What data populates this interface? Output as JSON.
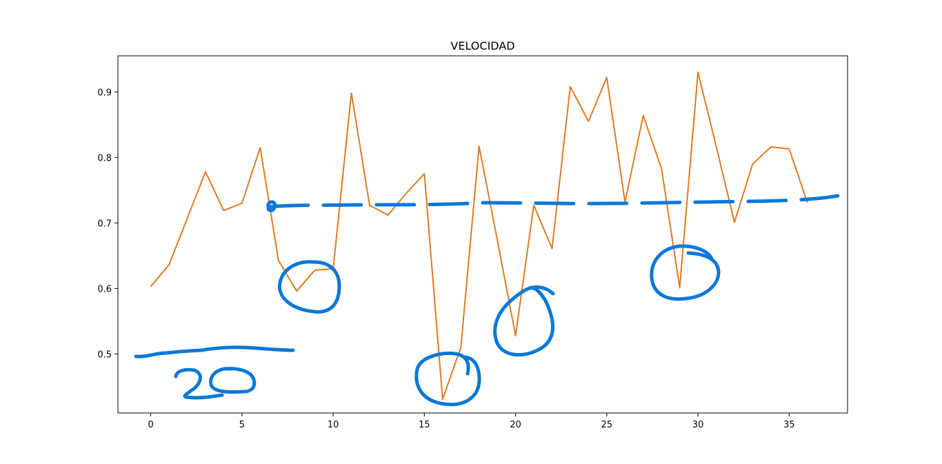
{
  "chart_data": {
    "type": "line",
    "title": "VELOCIDAD",
    "xlabel": "",
    "ylabel": "",
    "xlim": [
      -1.8,
      38.2
    ],
    "ylim": [
      0.41,
      0.955
    ],
    "x_ticks": [
      0,
      5,
      10,
      15,
      20,
      25,
      30,
      35
    ],
    "y_ticks": [
      0.5,
      0.6,
      0.7,
      0.8,
      0.9
    ],
    "grid": false,
    "line_color": "#e07b20",
    "annotation_color": "#0a78d8",
    "x": [
      0,
      1,
      2,
      3,
      4,
      5,
      6,
      7,
      8,
      9,
      10,
      11,
      12,
      13,
      14,
      15,
      16,
      17,
      18,
      19,
      20,
      21,
      22,
      23,
      24,
      25,
      26,
      27,
      28,
      29,
      30,
      31,
      32,
      33,
      34,
      35,
      36
    ],
    "series": [
      {
        "values": [
          0.603,
          0.636,
          0.707,
          0.778,
          0.719,
          0.73,
          0.815,
          0.643,
          0.596,
          0.628,
          0.63,
          0.898,
          0.727,
          0.712,
          0.745,
          0.775,
          0.431,
          0.51,
          0.817,
          0.674,
          0.528,
          0.727,
          0.661,
          0.908,
          0.855,
          0.922,
          0.732,
          0.864,
          0.783,
          0.601,
          0.93,
          0.817,
          0.701,
          0.79,
          0.816,
          0.813,
          0.731
        ]
      }
    ]
  }
}
